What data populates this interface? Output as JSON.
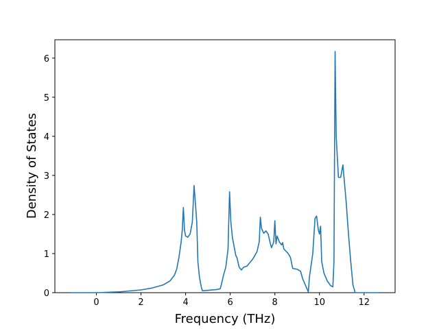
{
  "chart_data": {
    "type": "line",
    "xlabel": "Frequency (THz)",
    "ylabel": "Density of States",
    "xlim": [
      -1.86,
      13.39
    ],
    "ylim": [
      0,
      6.47
    ],
    "xticks": [
      0,
      2,
      4,
      6,
      8,
      10,
      12
    ],
    "yticks": [
      0,
      1,
      2,
      3,
      4,
      5,
      6
    ],
    "series": [
      {
        "color": "#1f77b4",
        "x": [
          -1.17,
          0,
          1,
          2,
          2.5,
          3,
          3.3,
          3.5,
          3.6,
          3.7,
          3.8,
          3.85,
          3.9,
          3.95,
          4.0,
          4.1,
          4.2,
          4.3,
          4.38,
          4.45,
          4.5,
          4.55,
          4.62,
          4.7,
          4.75,
          5.0,
          5.4,
          5.55,
          5.6,
          5.7,
          5.8,
          5.9,
          5.97,
          6.03,
          6.1,
          6.25,
          6.3,
          6.4,
          6.5,
          6.6,
          6.75,
          6.85,
          7.0,
          7.1,
          7.2,
          7.3,
          7.35,
          7.4,
          7.5,
          7.6,
          7.7,
          7.8,
          7.85,
          7.95,
          8.0,
          8.05,
          8.1,
          8.2,
          8.3,
          8.35,
          8.4,
          8.6,
          8.7,
          8.8,
          9.0,
          9.15,
          9.25,
          9.5,
          9.55,
          9.7,
          9.8,
          9.87,
          9.95,
          10.0,
          10.05,
          10.1,
          10.2,
          10.35,
          10.5,
          10.6,
          10.65,
          10.7,
          10.75,
          10.85,
          10.95,
          11.05,
          11.2,
          11.3,
          11.4,
          11.5,
          11.6,
          12.7
        ],
        "values": [
          0,
          0,
          0.02,
          0.07,
          0.12,
          0.2,
          0.3,
          0.45,
          0.6,
          0.9,
          1.3,
          1.6,
          2.18,
          1.6,
          1.45,
          1.42,
          1.5,
          1.8,
          2.74,
          2.2,
          1.8,
          0.8,
          0.4,
          0.15,
          0.05,
          0.06,
          0.08,
          0.1,
          0.2,
          0.45,
          0.65,
          1.1,
          2.58,
          1.8,
          1.4,
          0.95,
          0.9,
          0.65,
          0.58,
          0.65,
          0.68,
          0.75,
          0.85,
          0.95,
          1.05,
          1.3,
          1.93,
          1.65,
          1.52,
          1.58,
          1.5,
          1.25,
          1.15,
          1.3,
          1.84,
          1.25,
          1.45,
          1.3,
          1.22,
          1.28,
          1.12,
          1.0,
          0.9,
          0.62,
          0.6,
          0.55,
          0.35,
          0.02,
          0.4,
          1.0,
          1.9,
          1.96,
          1.6,
          1.5,
          1.7,
          0.8,
          0.5,
          0.3,
          0.18,
          0.15,
          0.8,
          6.17,
          4.0,
          2.95,
          2.95,
          3.27,
          2.3,
          1.5,
          0.8,
          0.2,
          0,
          0
        ]
      }
    ]
  }
}
